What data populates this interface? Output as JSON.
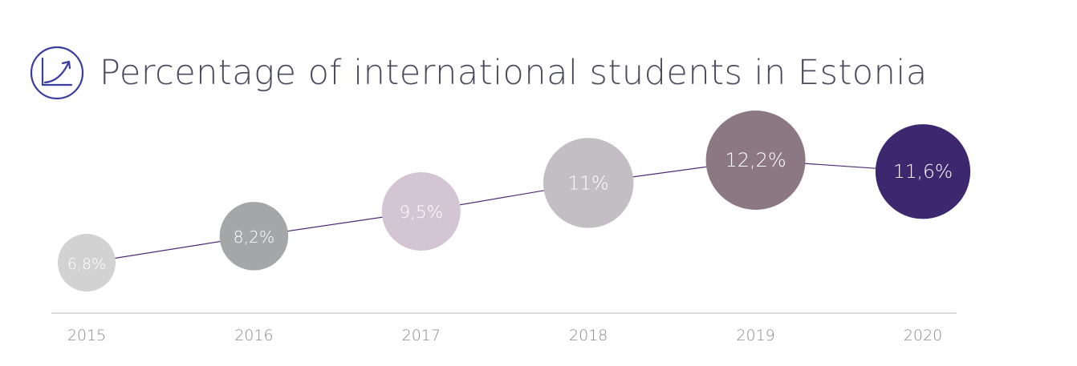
{
  "title": "Percentage of international students in Estonia",
  "icon": "line-growth-icon",
  "colors": {
    "title": "#4a4a5c",
    "icon": "#3a3f9e",
    "line": "#4b2a73",
    "baseline": "#b8b8c0",
    "year_text": "#8a8a92"
  },
  "chart_data": {
    "type": "scatter",
    "title": "Percentage of international students in Estonia",
    "xlabel": "",
    "ylabel": "",
    "categories": [
      "2015",
      "2016",
      "2017",
      "2018",
      "2019",
      "2020"
    ],
    "values": [
      6.8,
      8.2,
      9.5,
      11.0,
      12.2,
      11.6
    ],
    "labels": [
      "6,8%",
      "8,2%",
      "9,5%",
      "11%",
      "12,2%",
      "11,6%"
    ],
    "bubble_colors": [
      "#d2d2d2",
      "#a5a6a8",
      "#d4c5d5",
      "#c2bec4",
      "#8c7883",
      "#3d2870"
    ],
    "grid": false,
    "legend": "none"
  }
}
